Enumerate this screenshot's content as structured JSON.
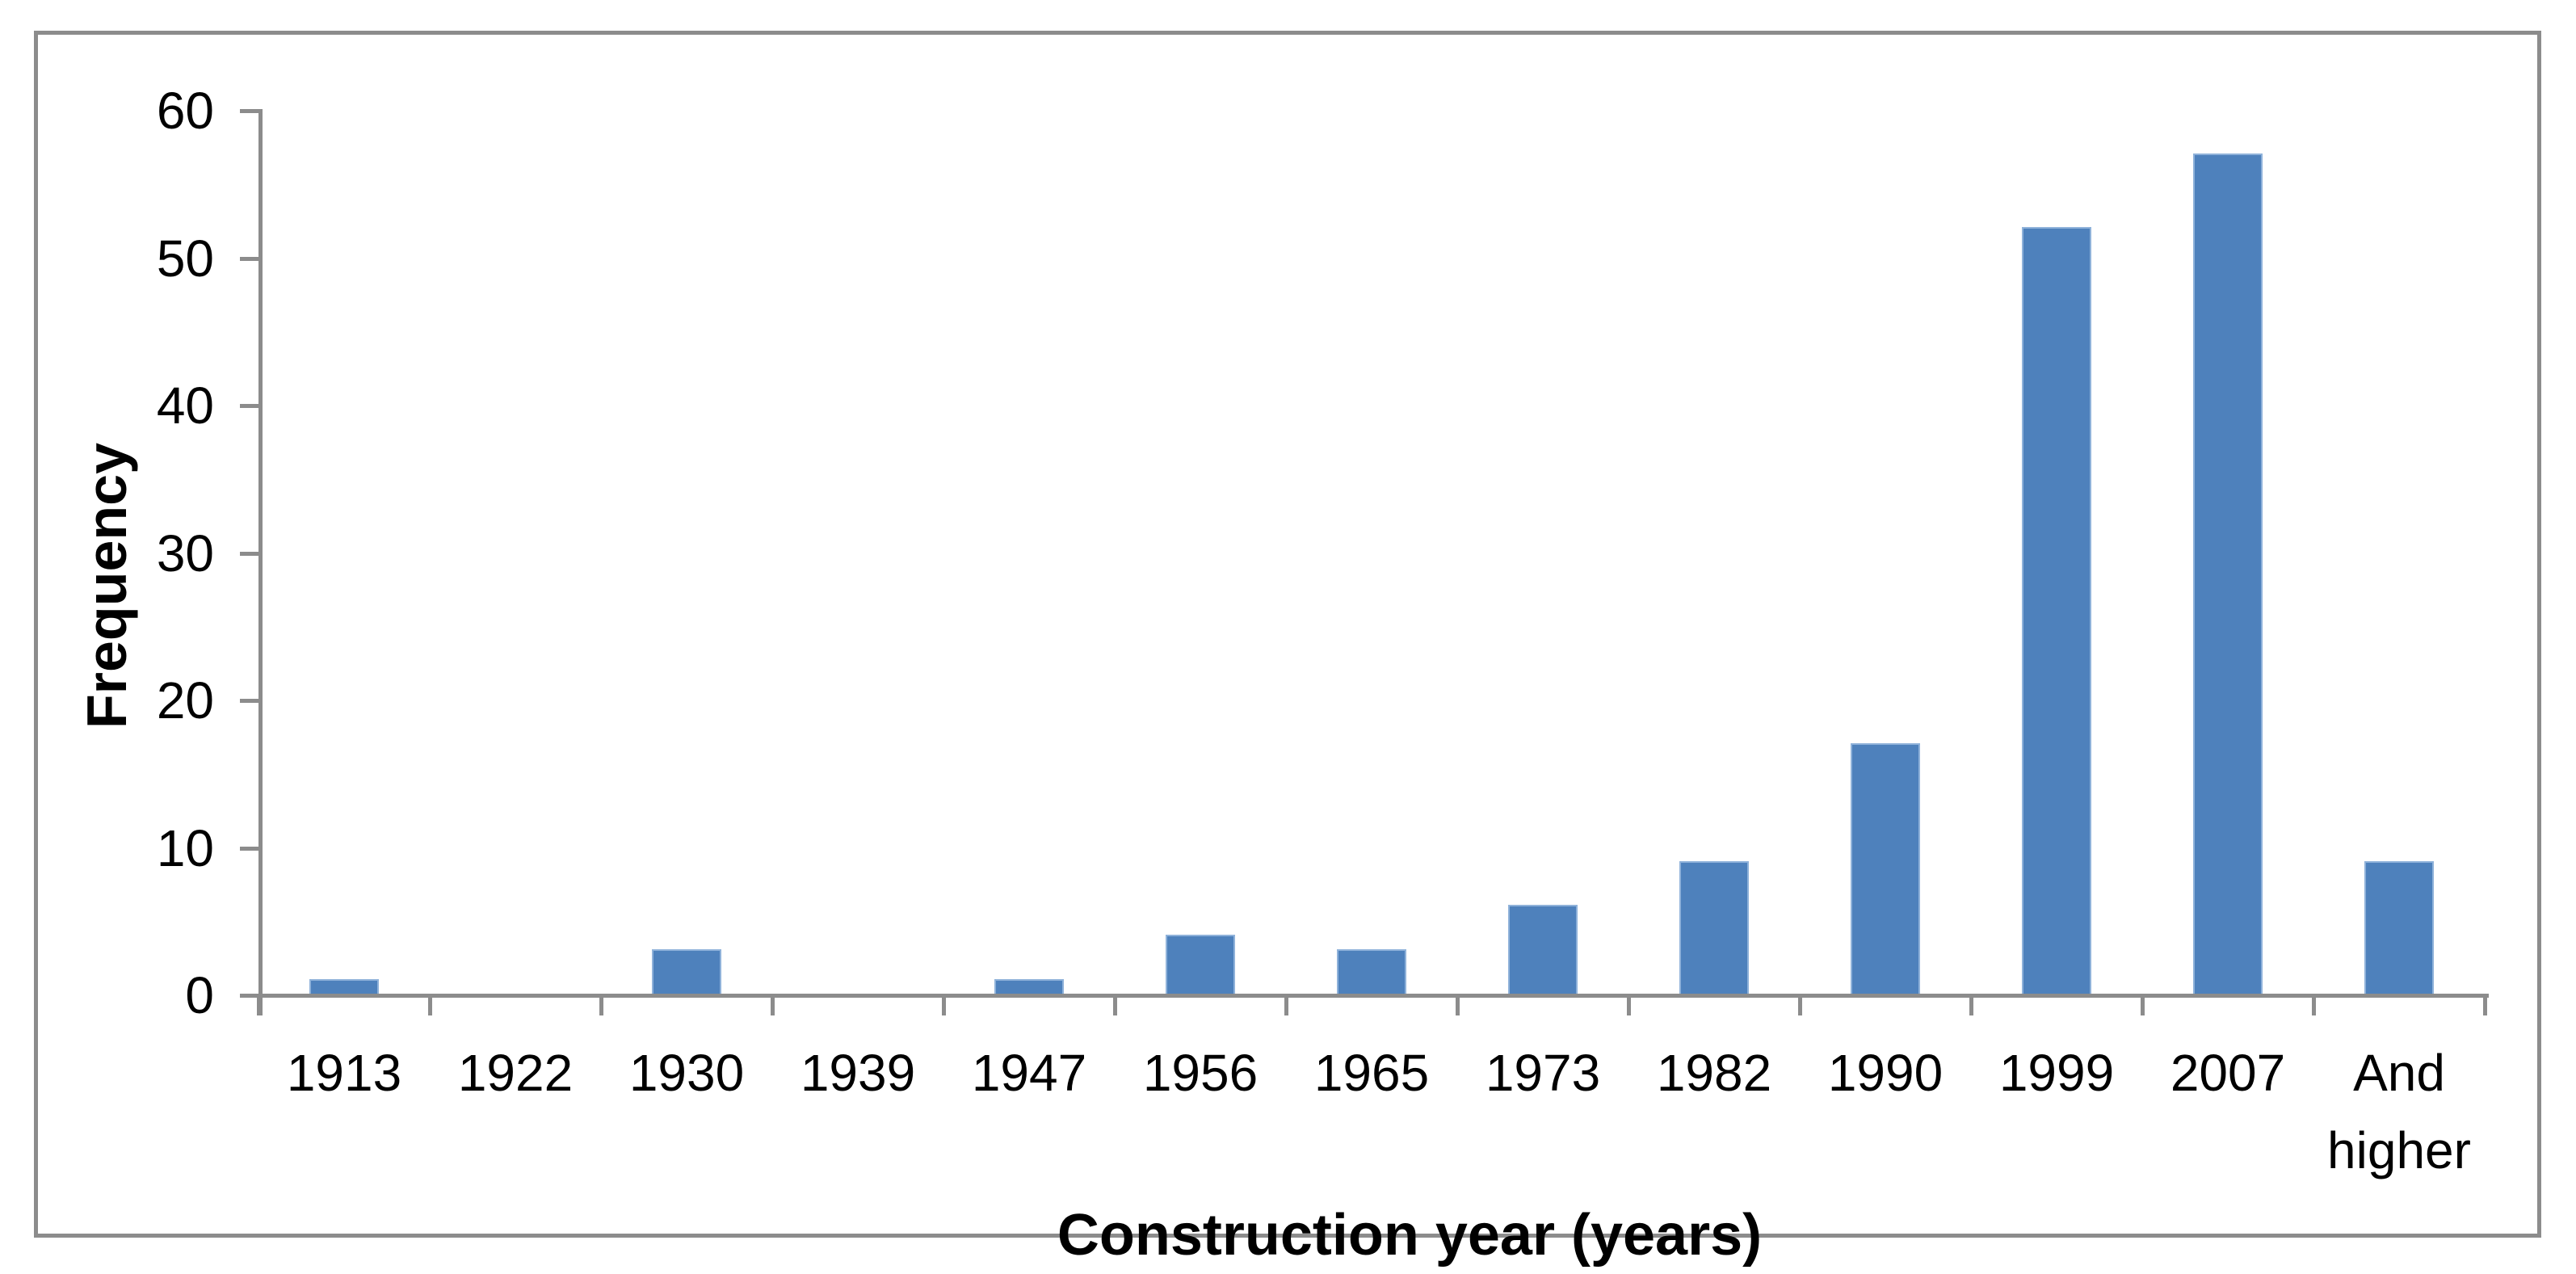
{
  "chart_data": {
    "type": "bar",
    "title": "",
    "categories": [
      "1913",
      "1922",
      "1930",
      "1939",
      "1947",
      "1956",
      "1965",
      "1973",
      "1982",
      "1990",
      "1999",
      "2007",
      "And higher"
    ],
    "values": [
      1,
      0,
      3,
      0,
      1,
      4,
      3,
      6,
      9,
      17,
      52,
      57,
      9
    ],
    "xlabel": "Construction year (years)",
    "ylabel": "Frequency",
    "ylim": [
      0,
      60
    ],
    "yticks": [
      0,
      10,
      20,
      30,
      40,
      50,
      60
    ],
    "grid": false,
    "legend": "none",
    "bar_color": "#4e81bc",
    "bar_edge_color": "#8fb2da",
    "axis_color": "#8c8c8c",
    "text_color": "#000000"
  }
}
